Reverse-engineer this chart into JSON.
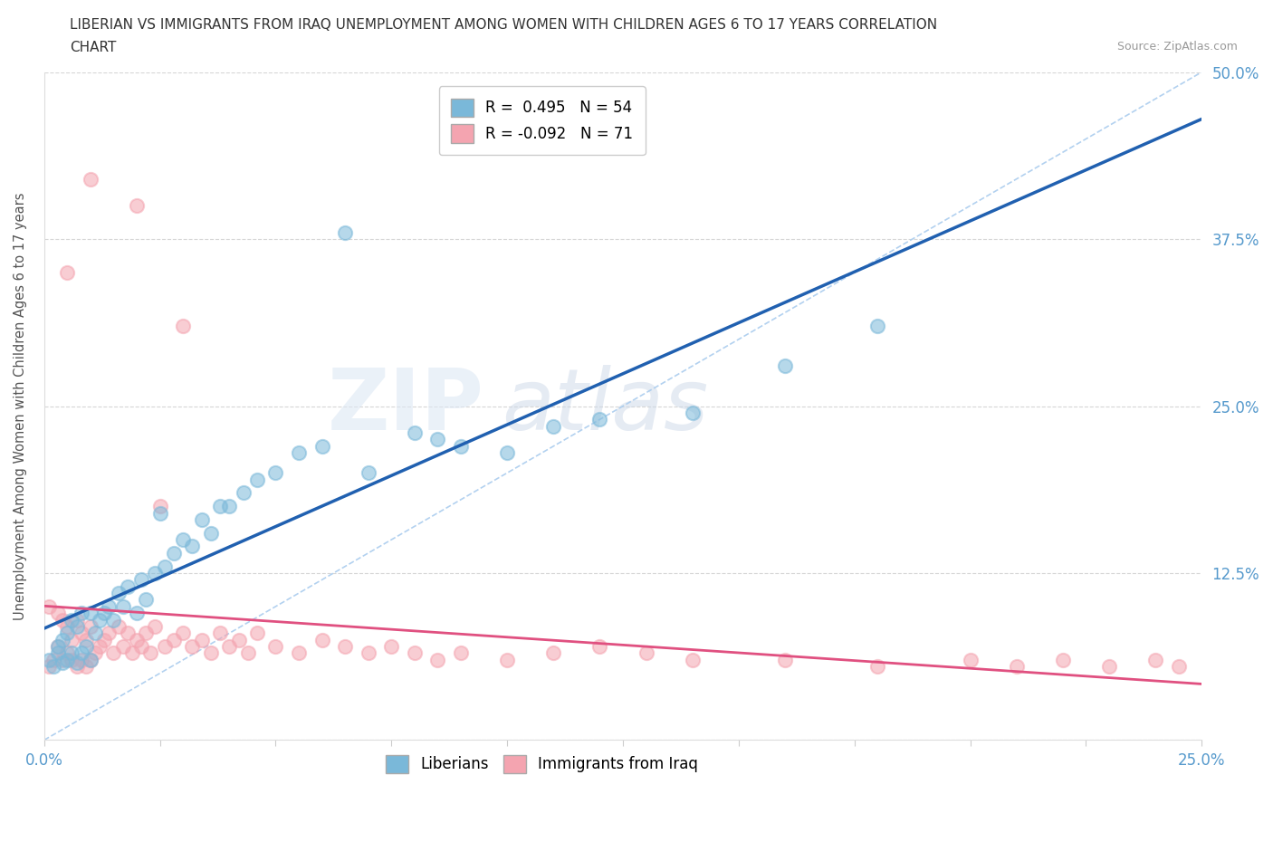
{
  "title_line1": "LIBERIAN VS IMMIGRANTS FROM IRAQ UNEMPLOYMENT AMONG WOMEN WITH CHILDREN AGES 6 TO 17 YEARS CORRELATION",
  "title_line2": "CHART",
  "source_text": "Source: ZipAtlas.com",
  "liberian_R": 0.495,
  "liberian_N": 54,
  "iraq_R": -0.092,
  "iraq_N": 71,
  "liberian_color": "#7ab8d9",
  "iraq_color": "#f4a4b0",
  "liberian_line_color": "#2060b0",
  "iraq_line_color": "#e05080",
  "ylabel": "Unemployment Among Women with Children Ages 6 to 17 years",
  "xmin": 0.0,
  "xmax": 0.25,
  "ymin": 0.0,
  "ymax": 0.5,
  "axis_color": "#5599cc",
  "title_color": "#333333",
  "source_color": "#999999",
  "grid_color": "#cccccc",
  "dash_color": "#aaccee",
  "legend_R_lib": "R =  0.495   N = 54",
  "legend_R_iraq": "R = -0.092   N = 71",
  "legend_lib": "Liberians",
  "legend_iraq": "Immigrants from Iraq"
}
